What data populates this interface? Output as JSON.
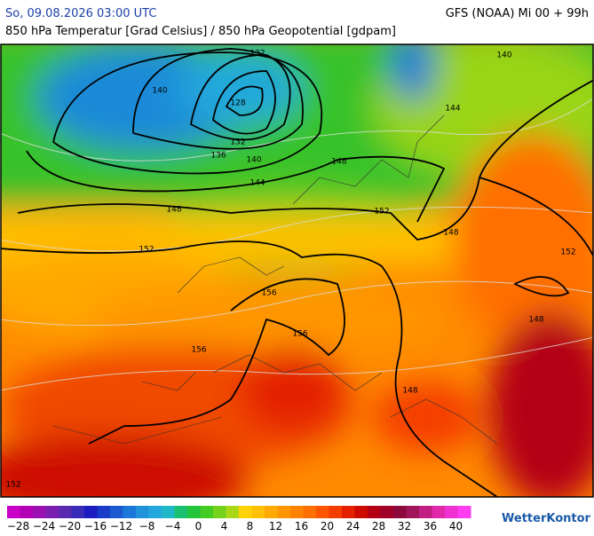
{
  "header": {
    "date": "So, 09.08.2026 03:00 UTC",
    "model": "GFS (NOAA) Mi 00 + 99h",
    "subtitle": "850 hPa Temperatur [Grad Celsius] / 850 hPa Geopotential [gdpam]"
  },
  "contour_labels": [
    "132",
    "140",
    "128",
    "132",
    "136",
    "140",
    "144",
    "148",
    "148",
    "152",
    "152",
    "148",
    "140",
    "144",
    "156",
    "156",
    "156",
    "148",
    "148",
    "152",
    "152"
  ],
  "colorbar": {
    "labels": [
      "−28",
      "−24",
      "−20",
      "−16",
      "−12",
      "−8",
      "−4",
      "0",
      "4",
      "8",
      "12",
      "16",
      "20",
      "24",
      "28",
      "32",
      "36",
      "40"
    ],
    "colors": [
      "#c800c8",
      "#b400b4",
      "#9a10b0",
      "#7a20b0",
      "#5a2ab0",
      "#3a2ab8",
      "#1c1cc0",
      "#1a3ac8",
      "#1c5ad0",
      "#1c78d8",
      "#2092da",
      "#22a8dc",
      "#20b8c8",
      "#18c070",
      "#22c43c",
      "#44cc22",
      "#74d21c",
      "#a8d818",
      "#ffd200",
      "#ffc000",
      "#ffaa00",
      "#ff9600",
      "#ff8200",
      "#ff6e00",
      "#ff5500",
      "#f43c00",
      "#e42000",
      "#cc0a00",
      "#b40014",
      "#a00028",
      "#8c0a3c",
      "#a0145a",
      "#c01e82",
      "#e028a8",
      "#f032d2",
      "#ff3cf0"
    ]
  },
  "brand": "WetterKontor"
}
